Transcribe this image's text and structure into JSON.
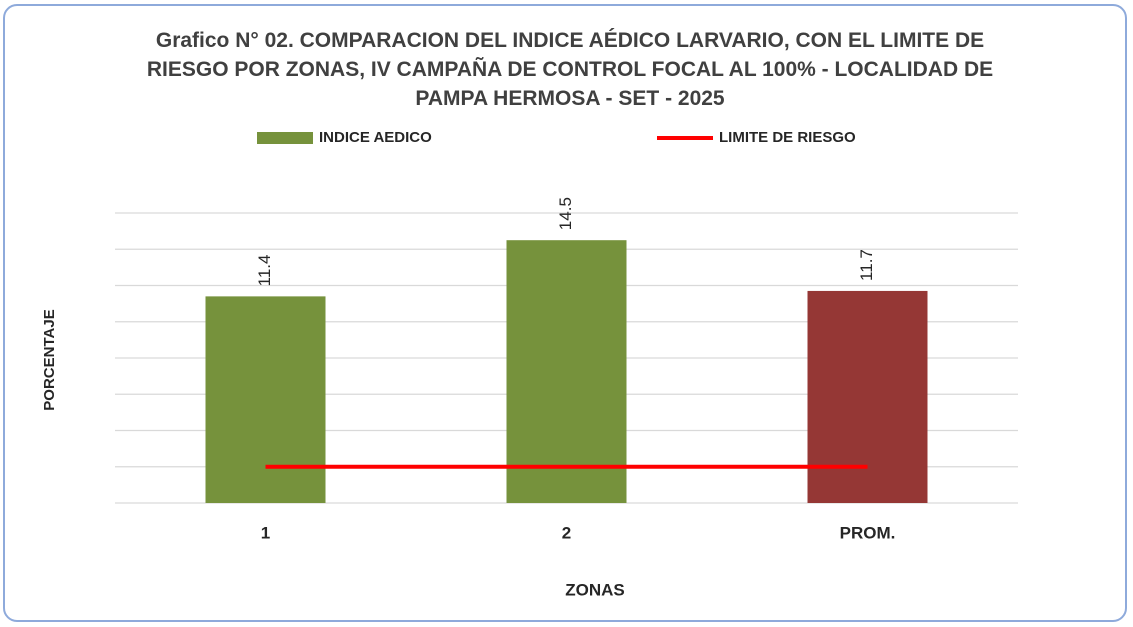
{
  "chart_data": {
    "type": "bar",
    "title": "Grafico N° 02. COMPARACION DEL  INDICE AÉDICO LARVARIO, CON EL LIMITE DE RIESGO POR ZONAS, IV CAMPAÑA DE CONTROL FOCAL AL 100%  - LOCALIDAD DE PAMPA HERMOSA - SET - 2025",
    "x_label": "ZONAS",
    "y_label": "PORCENTAJE",
    "categories": [
      "1",
      "2",
      "PROM."
    ],
    "series": [
      {
        "name": "INDICE AEDICO",
        "color": "#76923c",
        "colors": [
          "#76923c",
          "#76923c",
          "#953735"
        ],
        "values": [
          11.4,
          14.5,
          11.7
        ]
      },
      {
        "name": "LIMITE DE RIESGO",
        "type": "line",
        "color": "#ff0000",
        "values": [
          2,
          2,
          2
        ]
      }
    ],
    "ylim": [
      0,
      16
    ],
    "yticks": [
      0,
      2,
      4,
      6,
      8,
      10,
      12,
      14,
      16
    ],
    "grid": true
  }
}
